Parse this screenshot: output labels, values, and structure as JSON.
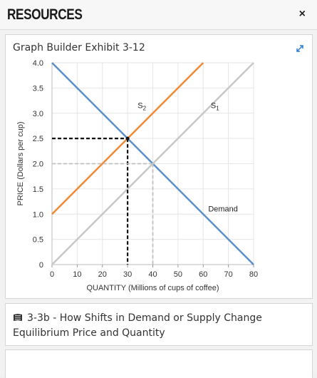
{
  "header": {
    "title": "RESOURCES",
    "close_label": "×"
  },
  "card": {
    "title": "Graph Builder Exhibit 3-12"
  },
  "chart_data": {
    "type": "line",
    "xlabel": "QUANTITY (Millions of cups of coffee)",
    "ylabel": "PRICE (Dollars per cup)",
    "xlim": [
      0,
      80
    ],
    "ylim": [
      0,
      4.0
    ],
    "x_ticks": [
      "0",
      "10",
      "20",
      "30",
      "40",
      "50",
      "60",
      "70",
      "80"
    ],
    "y_ticks": [
      "0",
      "0.5",
      "1.0",
      "1.5",
      "2.0",
      "2.5",
      "3.0",
      "3.5",
      "4.0"
    ],
    "grid": true,
    "series": [
      {
        "name": "Demand",
        "color": "#5b8fc9",
        "x": [
          0,
          80
        ],
        "y": [
          4.0,
          0
        ]
      },
      {
        "name": "S1",
        "color": "#c8c8c8",
        "x": [
          0,
          80
        ],
        "y": [
          0,
          4.0
        ]
      },
      {
        "name": "S2",
        "color": "#ef8a32",
        "x": [
          0,
          60
        ],
        "y": [
          1.0,
          4.0
        ]
      }
    ],
    "labels": [
      {
        "text": "Demand",
        "x": 62,
        "y": 1.05
      },
      {
        "text": "S",
        "sub": "2",
        "x": 34,
        "y": 3.1
      },
      {
        "text": "S",
        "sub": "1",
        "x": 63,
        "y": 3.1
      }
    ],
    "equilibria": [
      {
        "x": 30,
        "y": 2.5,
        "color": "#111111",
        "style": "dashed-heavy"
      },
      {
        "x": 40,
        "y": 2.0,
        "color": "#c0c0c0",
        "style": "dashed"
      }
    ]
  },
  "link": {
    "icon": "book-icon",
    "text": "3-3b - How Shifts in Demand or Supply Change Equilibrium Price and Quantity"
  }
}
